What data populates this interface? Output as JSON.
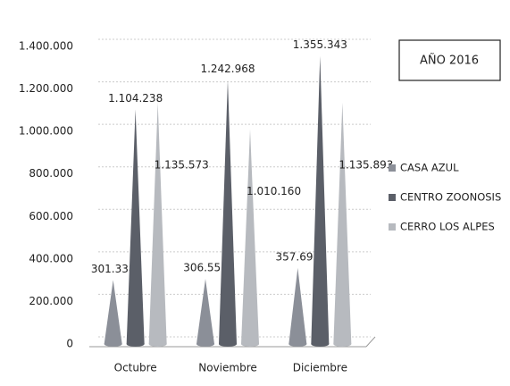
{
  "chart_data": {
    "type": "cone",
    "title": "AÑO 2016",
    "categories": [
      "Octubre",
      "Noviembre",
      "Diciembre"
    ],
    "series": [
      {
        "name": "CASA AZUL",
        "color": "#8b8f98",
        "values": [
          301338,
          306555,
          357695
        ],
        "value_labels": [
          "301.338",
          "306.555",
          "357.695"
        ]
      },
      {
        "name": "CENTRO ZOONOSIS",
        "color": "#5b5f68",
        "values": [
          1104238,
          1242968,
          1355343
        ],
        "value_labels": [
          "1.104.238",
          "1.242.968",
          "1.355.343"
        ]
      },
      {
        "name": "CERRO LOS ALPES",
        "color": "#b7babf",
        "values": [
          1135573,
          1010160,
          1135893
        ],
        "value_labels": [
          "1.135.573",
          "1.010.160",
          "1.135.893"
        ]
      }
    ],
    "ylim": [
      0,
      1400000
    ],
    "yticks": [
      {
        "value": 0,
        "label": "0"
      },
      {
        "value": 200000,
        "label": "200.000"
      },
      {
        "value": 400000,
        "label": "400.000"
      },
      {
        "value": 600000,
        "label": "600.000"
      },
      {
        "value": 800000,
        "label": "800.000"
      },
      {
        "value": 1000000,
        "label": "1.000.000"
      },
      {
        "value": 1200000,
        "label": "1.200.000"
      },
      {
        "value": 1400000,
        "label": "1.400.000"
      }
    ],
    "grid": true,
    "legend": "right"
  }
}
